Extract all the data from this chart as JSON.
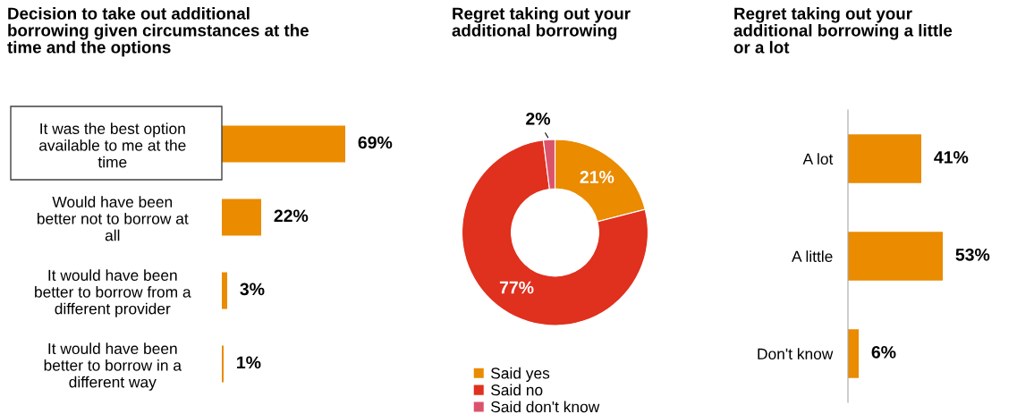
{
  "chart_data": [
    {
      "type": "bar",
      "orientation": "horizontal",
      "title": "Decision to take out additional\nborrowing given circumstances at the\ntime and the options",
      "categories": [
        "It was the best option\navailable to me at the\ntime",
        "Would have been\nbetter not to borrow at\nall",
        "It would have been\nbetter to borrow from a\ndifferent provider",
        "It would have been\nbetter to borrow in a\ndifferent way"
      ],
      "values": [
        69,
        22,
        3,
        1
      ],
      "color": "#ea8b00",
      "data_labels": true,
      "value_labels": [
        "69%",
        "22%",
        "3%",
        "1%"
      ]
    },
    {
      "type": "donut",
      "title": "Regret taking out your\nadditional borrowing",
      "categories": [
        "Said yes",
        "Said no",
        "Said don't know"
      ],
      "values": [
        21,
        77,
        2
      ],
      "colors": [
        "#ea8b00",
        "#e0301e",
        "#db536a"
      ],
      "data_labels": true,
      "value_labels": [
        "21%",
        "77%",
        "2%"
      ],
      "legend": "bottom"
    },
    {
      "type": "bar",
      "orientation": "horizontal",
      "title": "Regret taking out your\nadditional borrowing a little\nor a lot",
      "categories": [
        "A lot",
        "A little",
        "Don't know"
      ],
      "values": [
        41,
        53,
        6
      ],
      "color": "#ea8b00",
      "data_labels": true,
      "value_labels": [
        "41%",
        "53%",
        "6%"
      ]
    }
  ]
}
